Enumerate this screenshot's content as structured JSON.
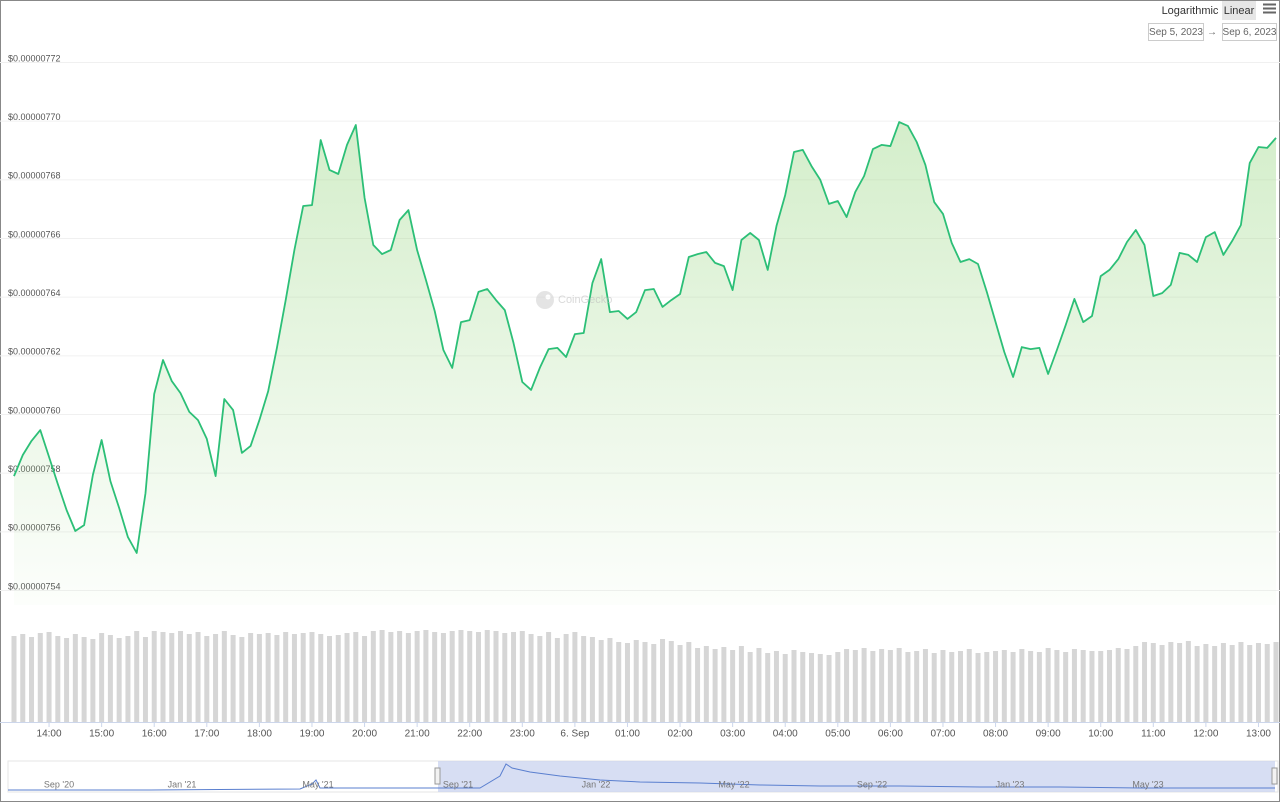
{
  "chart_data": {
    "type": "line",
    "color": "#2cbf77",
    "log": false,
    "grid": true,
    "ylim": [
      7.54e-06,
      7.72e-06
    ],
    "yticks": [
      {
        "value": 7.54e-06,
        "label": "$0.00000754"
      },
      {
        "value": 7.56e-06,
        "label": "$0.00000756"
      },
      {
        "value": 7.58e-06,
        "label": "$0.00000758"
      },
      {
        "value": 7.6e-06,
        "label": "$0.00000760"
      },
      {
        "value": 7.62e-06,
        "label": "$0.00000762"
      },
      {
        "value": 7.64e-06,
        "label": "$0.00000764"
      },
      {
        "value": 7.66e-06,
        "label": "$0.00000766"
      },
      {
        "value": 7.68e-06,
        "label": "$0.00000768"
      },
      {
        "value": 7.7e-06,
        "label": "$0.00000770"
      },
      {
        "value": 7.72e-06,
        "label": "$0.00000772"
      }
    ],
    "categories": [
      null,
      null,
      null,
      null,
      "14:00",
      null,
      null,
      null,
      null,
      null,
      "15:00",
      null,
      null,
      null,
      null,
      null,
      "16:00",
      null,
      null,
      null,
      null,
      null,
      "17:00",
      null,
      null,
      null,
      null,
      null,
      "18:00",
      null,
      null,
      null,
      null,
      null,
      "19:00",
      null,
      null,
      null,
      null,
      null,
      "20:00",
      null,
      null,
      null,
      null,
      null,
      "21:00",
      null,
      null,
      null,
      null,
      null,
      "22:00",
      null,
      null,
      null,
      null,
      null,
      "23:00",
      null,
      null,
      null,
      null,
      null,
      "6. Sep",
      null,
      null,
      null,
      null,
      null,
      "01:00",
      null,
      null,
      null,
      null,
      null,
      "02:00",
      null,
      null,
      null,
      null,
      null,
      "03:00",
      null,
      null,
      null,
      null,
      null,
      "04:00",
      null,
      null,
      null,
      null,
      null,
      "05:00",
      null,
      null,
      null,
      null,
      null,
      "06:00",
      null,
      null,
      null,
      null,
      null,
      "07:00",
      null,
      null,
      null,
      null,
      null,
      "08:00",
      null,
      null,
      null,
      null,
      null,
      "09:00",
      null,
      null,
      null,
      null,
      null,
      "10:00",
      null,
      null,
      null,
      null,
      null,
      "11:00",
      null,
      null,
      null,
      null,
      null,
      "12:00",
      null,
      null,
      null,
      null,
      null,
      "13:00",
      null,
      null
    ],
    "values": [
      7.5778e-06,
      7.585e-06,
      7.5898e-06,
      7.5935e-06,
      7.5843e-06,
      7.5751e-06,
      7.5662e-06,
      7.5591e-06,
      7.5611e-06,
      7.5782e-06,
      7.5901e-06,
      7.5761e-06,
      7.5669e-06,
      7.557e-06,
      7.5516e-06,
      7.572e-06,
      7.6058e-06,
      7.6174e-06,
      7.6102e-06,
      7.6061e-06,
      7.5997e-06,
      7.5969e-06,
      7.5905e-06,
      7.5778e-06,
      7.6041e-06,
      7.6003e-06,
      7.5857e-06,
      7.5881e-06,
      7.5969e-06,
      7.6068e-06,
      7.6215e-06,
      7.6378e-06,
      7.6549e-06,
      7.6699e-06,
      7.6702e-06,
      7.6924e-06,
      7.6822e-06,
      7.6808e-06,
      7.6907e-06,
      7.6975e-06,
      7.6726e-06,
      7.6566e-06,
      7.6535e-06,
      7.6549e-06,
      7.6651e-06,
      7.6685e-06,
      7.6549e-06,
      7.6447e-06,
      7.6341e-06,
      7.6208e-06,
      7.6147e-06,
      7.6303e-06,
      7.631e-06,
      7.6406e-06,
      7.6416e-06,
      7.6378e-06,
      7.6344e-06,
      7.6232e-06,
      7.6099e-06,
      7.6072e-06,
      7.6147e-06,
      7.6211e-06,
      7.6215e-06,
      7.6184e-06,
      7.6262e-06,
      7.6266e-06,
      7.6436e-06,
      7.6518e-06,
      7.6337e-06,
      7.6341e-06,
      7.6314e-06,
      7.6337e-06,
      7.6412e-06,
      7.6416e-06,
      7.6355e-06,
      7.6378e-06,
      7.6399e-06,
      7.6525e-06,
      7.6535e-06,
      7.6542e-06,
      7.6505e-06,
      7.6494e-06,
      7.6412e-06,
      7.6583e-06,
      7.6607e-06,
      7.6583e-06,
      7.6481e-06,
      7.6631e-06,
      7.6736e-06,
      7.6883e-06,
      7.689e-06,
      7.6835e-06,
      7.6788e-06,
      7.6706e-06,
      7.6716e-06,
      7.6661e-06,
      7.6747e-06,
      7.6801e-06,
      7.6893e-06,
      7.6907e-06,
      7.6903e-06,
      7.6985e-06,
      7.6972e-06,
      7.6917e-06,
      7.6839e-06,
      7.6712e-06,
      7.6672e-06,
      7.6573e-06,
      7.6508e-06,
      7.6518e-06,
      7.6501e-06,
      7.6406e-06,
      7.6303e-06,
      7.6201e-06,
      7.6116e-06,
      7.6218e-06,
      7.6211e-06,
      7.6215e-06,
      7.6126e-06,
      7.6208e-06,
      7.6293e-06,
      7.6382e-06,
      7.6303e-06,
      7.6324e-06,
      7.646e-06,
      7.6481e-06,
      7.6518e-06,
      7.6576e-06,
      7.6617e-06,
      7.6566e-06,
      7.6392e-06,
      7.6402e-06,
      7.643e-06,
      7.6539e-06,
      7.6532e-06,
      7.6508e-06,
      7.6593e-06,
      7.661e-06,
      7.6532e-06,
      7.658e-06,
      7.6634e-06,
      7.6845e-06,
      7.69e-06,
      7.6897e-06,
      7.6931e-06
    ],
    "volume_color": "#d6d6d6",
    "volume": [
      86,
      88,
      85,
      89,
      90,
      86,
      84,
      88,
      85,
      83,
      89,
      87,
      84,
      86,
      91,
      85,
      91,
      90,
      89,
      91,
      88,
      90,
      86,
      88,
      91,
      87,
      85,
      89,
      88,
      89,
      87,
      90,
      88,
      89,
      90,
      88,
      86,
      87,
      89,
      90,
      86,
      91,
      92,
      90,
      91,
      89,
      91,
      92,
      90,
      89,
      91,
      92,
      91,
      90,
      92,
      91,
      89,
      90,
      91,
      88,
      86,
      90,
      84,
      88,
      90,
      86,
      85,
      82,
      84,
      80,
      79,
      82,
      80,
      78,
      83,
      81,
      77,
      80,
      74,
      76,
      73,
      75,
      72,
      76,
      70,
      74,
      69,
      71,
      68,
      72,
      70,
      69,
      68,
      67,
      70,
      73,
      72,
      74,
      71,
      73,
      72,
      74,
      70,
      71,
      73,
      69,
      72,
      70,
      71,
      73,
      69,
      70,
      71,
      72,
      70,
      73,
      71,
      70,
      74,
      72,
      70,
      73,
      72,
      71,
      71,
      72,
      74,
      73,
      76,
      80,
      79,
      77,
      80,
      79,
      81,
      76,
      78,
      76,
      79,
      77,
      80,
      77,
      79,
      78,
      80
    ]
  },
  "watermark": "CoinGecko",
  "scale_buttons": [
    "Logarithmic",
    "Linear"
  ],
  "range_inputs": [
    "Sep 5, 2023",
    "Sep 6, 2023"
  ],
  "range_separator": "→",
  "navigator_labels": [
    "Sep '20",
    "Jan '21",
    "May '21",
    "Sep '21",
    "Jan '22",
    "May '22",
    "Sep '22",
    "Jan '23",
    "May '23"
  ]
}
